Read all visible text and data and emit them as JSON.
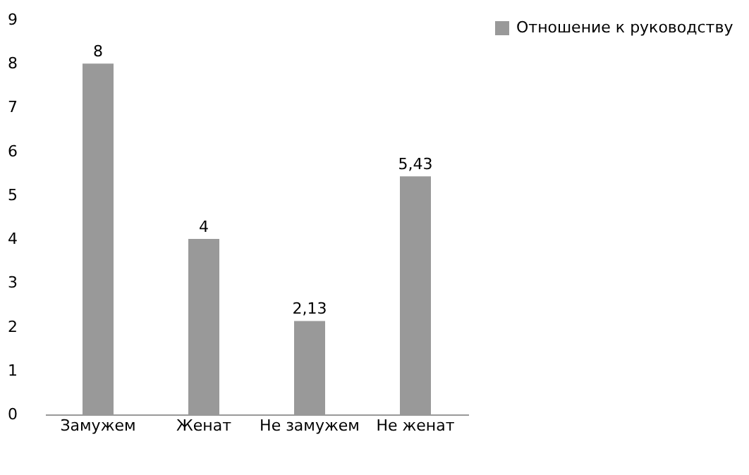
{
  "chart_data": {
    "type": "bar",
    "categories": [
      "Замужем",
      "Женат",
      "Не замужем",
      "Не женат"
    ],
    "series": [
      {
        "name": "Отношение к руководству",
        "color": "#999999",
        "values": [
          8,
          4,
          2.13,
          5.43
        ],
        "value_labels": [
          "8",
          "4",
          "2,13",
          "5,43"
        ]
      }
    ],
    "ylim": [
      0,
      9
    ],
    "yticks": [
      0,
      1,
      2,
      3,
      4,
      5,
      6,
      7,
      8,
      9
    ],
    "grid": false,
    "legend": "right"
  }
}
